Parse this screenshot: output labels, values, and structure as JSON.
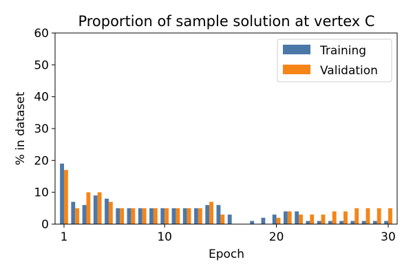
{
  "chart_data": {
    "type": "bar",
    "title": "Proportion of sample solution at vertex C",
    "xlabel": "Epoch",
    "ylabel": "% in dataset",
    "x": [
      1,
      2,
      3,
      4,
      5,
      6,
      7,
      8,
      9,
      10,
      11,
      12,
      13,
      14,
      15,
      16,
      17,
      18,
      19,
      20,
      21,
      22,
      23,
      24,
      25,
      26,
      27,
      28,
      29,
      30
    ],
    "series": [
      {
        "name": "Training",
        "color": "#4c78a8",
        "values": [
          19,
          7,
          6,
          9,
          8,
          5,
          5,
          5,
          5,
          5,
          5,
          5,
          5,
          6,
          6,
          3,
          0,
          1,
          2,
          3,
          4,
          4,
          1,
          1,
          1,
          1,
          1,
          1,
          1,
          1
        ]
      },
      {
        "name": "Validation",
        "color": "#f58518",
        "values": [
          17,
          5,
          10,
          10,
          7,
          5,
          5,
          5,
          5,
          5,
          5,
          5,
          5,
          7,
          3,
          0,
          0,
          0,
          0,
          2,
          4,
          3,
          3,
          3,
          4,
          4,
          5,
          5,
          5,
          5
        ]
      }
    ],
    "ylim": [
      0,
      60
    ],
    "yticks": [
      0,
      10,
      20,
      30,
      40,
      50,
      60
    ],
    "xticks": [
      1,
      10,
      20,
      30
    ],
    "xlim": [
      0.2,
      30.8
    ],
    "legend_position": "top-right",
    "grid": false
  }
}
